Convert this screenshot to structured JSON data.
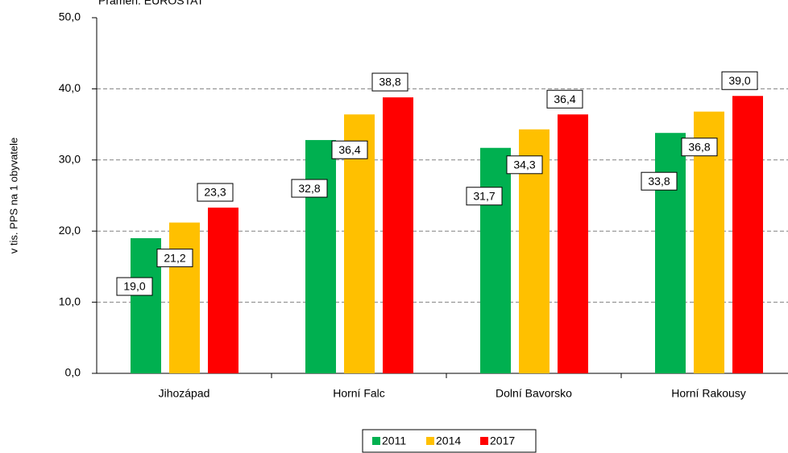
{
  "chart_data": {
    "type": "bar",
    "source": "Pramen: EUROSTAT",
    "y_label": "v tis. PPS na 1 obyvatele",
    "categories": [
      "Jihozápad",
      "Horní Falc",
      "Dolní Bavorsko",
      "Horní Rakousy"
    ],
    "series": [
      {
        "name": "2011",
        "color": "#00b050",
        "values": [
          19.0,
          32.8,
          31.7,
          33.8
        ],
        "value_labels": [
          "19,0",
          "32,8",
          "31,7",
          "33,8"
        ]
      },
      {
        "name": "2014",
        "color": "#ffc000",
        "values": [
          21.2,
          36.4,
          34.3,
          36.8
        ],
        "value_labels": [
          "21,2",
          "36,4",
          "34,3",
          "36,8"
        ]
      },
      {
        "name": "2017",
        "color": "#ff0000",
        "values": [
          23.3,
          38.8,
          36.4,
          39.0
        ],
        "value_labels": [
          "23,3",
          "38,8",
          "36,4",
          "39,0"
        ]
      }
    ],
    "ylim": [
      0,
      50
    ],
    "yticks": [
      {
        "value": 0,
        "label": "0,0"
      },
      {
        "value": 10,
        "label": "10,0"
      },
      {
        "value": 20,
        "label": "20,0"
      },
      {
        "value": 30,
        "label": "30,0"
      },
      {
        "value": 40,
        "label": "40,0"
      },
      {
        "value": 50,
        "label": "50,0"
      }
    ],
    "grid": true,
    "legend": "bottom"
  }
}
